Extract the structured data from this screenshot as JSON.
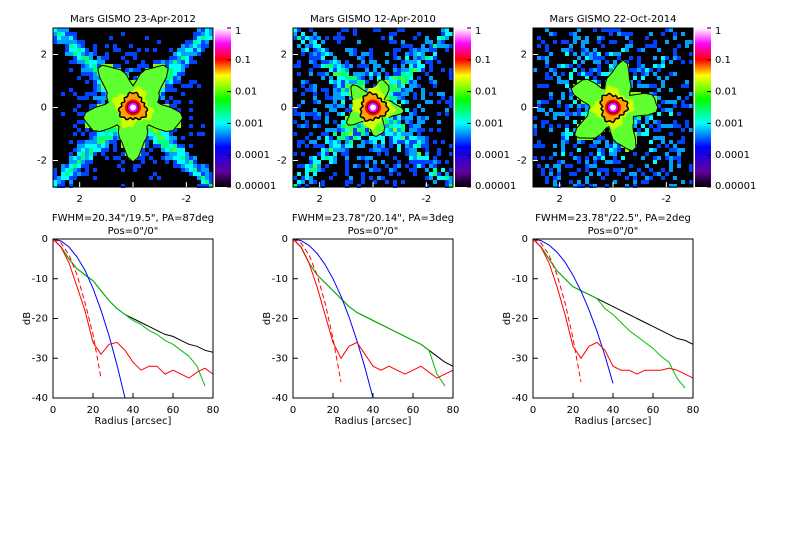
{
  "chart_data": [
    {
      "type": "image",
      "title": "Mars GISMO 23-Apr-2012",
      "xlim": [
        3,
        -3
      ],
      "xticks": [
        2,
        0,
        -2
      ],
      "ylim": [
        -3,
        3
      ],
      "yticks": [
        -2,
        0,
        2
      ],
      "colorbar": {
        "scale": "log",
        "lim": [
          1e-05,
          1
        ],
        "ticks": [
          1,
          0.1,
          0.01,
          0.001,
          0.0001,
          1e-05
        ]
      }
    },
    {
      "type": "image",
      "title": "Mars GISMO 12-Apr-2010",
      "xlim": [
        3,
        -3
      ],
      "xticks": [
        2,
        0,
        -2
      ],
      "ylim": [
        -3,
        3
      ],
      "yticks": [
        -2,
        0,
        2
      ],
      "colorbar": {
        "scale": "log",
        "lim": [
          1e-05,
          1
        ],
        "ticks": [
          1,
          0.1,
          0.01,
          0.001,
          0.0001,
          1e-05
        ]
      }
    },
    {
      "type": "image",
      "title": "Mars GISMO 22-Oct-2014",
      "xlim": [
        3,
        -3
      ],
      "xticks": [
        2,
        0,
        -2
      ],
      "ylim": [
        -3,
        3
      ],
      "yticks": [
        -2,
        0,
        2
      ],
      "colorbar": {
        "scale": "log",
        "lim": [
          1e-05,
          1
        ],
        "ticks": [
          1,
          0.1,
          0.01,
          0.001,
          0.0001,
          1e-05
        ]
      }
    },
    {
      "type": "line",
      "title": "FWHM=20.34\"/19.5\", PA=87deg",
      "subtitle": "Pos=0\"/0\"",
      "xlabel": "Radius [arcsec]",
      "ylabel": "dB",
      "x": [
        0,
        4,
        8,
        12,
        16,
        20,
        24,
        28,
        32,
        36,
        40,
        44,
        48,
        52,
        56,
        60,
        64,
        68,
        72,
        76,
        80
      ],
      "xlim": [
        0,
        80
      ],
      "xticks": [
        0,
        20,
        40,
        60,
        80
      ],
      "ylim": [
        -40,
        0
      ],
      "yticks": [
        0,
        -10,
        -20,
        -30,
        -40
      ],
      "series": [
        {
          "color": "#000000",
          "values": [
            0,
            -2,
            -5,
            -7.5,
            -9,
            -10.5,
            -13,
            -15.5,
            -17.5,
            -19,
            -20,
            -21,
            -22,
            -23,
            -24,
            -24.5,
            -25.5,
            -26.5,
            -27,
            -28,
            -28.5
          ]
        },
        {
          "color": "#00c000",
          "values": [
            0,
            -2,
            -5,
            -7.5,
            -9,
            -10.5,
            -13,
            -15.5,
            -17.5,
            -19,
            -20.5,
            -21.5,
            -23,
            -24,
            -25.5,
            -26.5,
            -28,
            -29.5,
            -32,
            -37,
            null
          ]
        },
        {
          "color": "#0000ff",
          "values": [
            0,
            -0.5,
            -2,
            -4.5,
            -7.9,
            -12.4,
            -17.9,
            -24.3,
            -31.7,
            -40,
            null,
            null,
            null,
            null,
            null,
            null,
            null,
            null,
            null,
            null,
            null
          ]
        },
        {
          "color": "#ff0000",
          "values": [
            0,
            -2,
            -6,
            -12,
            -18,
            -26,
            -29,
            -26.5,
            -26,
            -28,
            -31,
            -33,
            -32,
            -32,
            -34,
            -33,
            -34,
            -35,
            -33.5,
            -32.5,
            -34
          ]
        },
        {
          "color": "#ff0000",
          "dash": true,
          "values": [
            0,
            -1,
            -4,
            -9,
            -16,
            -24,
            -35,
            null,
            null,
            null,
            null,
            null,
            null,
            null,
            null,
            null,
            null,
            null,
            null,
            null,
            null
          ]
        }
      ]
    },
    {
      "type": "line",
      "title": "FWHM=23.78\"/20.14\", PA=3deg",
      "subtitle": "Pos=0\"/0\"",
      "xlabel": "Radius [arcsec]",
      "ylabel": "dB",
      "x": [
        0,
        4,
        8,
        12,
        16,
        20,
        24,
        28,
        32,
        36,
        40,
        44,
        48,
        52,
        56,
        60,
        64,
        68,
        72,
        76,
        80
      ],
      "xlim": [
        0,
        80
      ],
      "xticks": [
        0,
        20,
        40,
        60,
        80
      ],
      "ylim": [
        -40,
        0
      ],
      "yticks": [
        0,
        -10,
        -20,
        -30,
        -40
      ],
      "series": [
        {
          "color": "#000000",
          "values": [
            0,
            -2,
            -6,
            -9,
            -11,
            -13,
            -15,
            -17,
            -18.5,
            -19.5,
            -20.5,
            -21.5,
            -22.5,
            -23.5,
            -24.5,
            -25.5,
            -26.5,
            -28,
            -29.5,
            -31,
            -32
          ]
        },
        {
          "color": "#00c000",
          "values": [
            0,
            -2,
            -6,
            -9,
            -11,
            -13,
            -15,
            -17,
            -18.5,
            -19.5,
            -20.5,
            -21.5,
            -22.5,
            -23.5,
            -24.5,
            -25.5,
            -26.5,
            -28,
            -34,
            -37,
            null
          ]
        },
        {
          "color": "#0000ff",
          "values": [
            0,
            -0.4,
            -1.6,
            -3.6,
            -6.4,
            -10,
            -14.4,
            -19.6,
            -25.6,
            -32.4,
            -40,
            null,
            null,
            null,
            null,
            null,
            null,
            null,
            null,
            null,
            null
          ]
        },
        {
          "color": "#ff0000",
          "values": [
            0,
            -2,
            -6,
            -12,
            -19,
            -26,
            -30,
            -27,
            -26,
            -29,
            -32,
            -33,
            -32,
            -33,
            -34,
            -33,
            -32,
            -33.5,
            -35,
            -34,
            -33
          ]
        },
        {
          "color": "#ff0000",
          "dash": true,
          "values": [
            0,
            -1,
            -4,
            -9,
            -16,
            -25,
            -36,
            null,
            null,
            null,
            null,
            null,
            null,
            null,
            null,
            null,
            null,
            null,
            null,
            null,
            null
          ]
        }
      ]
    },
    {
      "type": "line",
      "title": "FWHM=23.78\"/22.5\", PA=2deg",
      "subtitle": "Pos=0\"/0\"",
      "xlabel": "Radius [arcsec]",
      "ylabel": "dB",
      "x": [
        0,
        4,
        8,
        12,
        16,
        20,
        24,
        28,
        32,
        36,
        40,
        44,
        48,
        52,
        56,
        60,
        64,
        68,
        72,
        76,
        80
      ],
      "xlim": [
        0,
        80
      ],
      "xticks": [
        0,
        20,
        40,
        60,
        80
      ],
      "ylim": [
        -40,
        0
      ],
      "yticks": [
        0,
        -10,
        -20,
        -30,
        -40
      ],
      "series": [
        {
          "color": "#000000",
          "values": [
            0,
            -2,
            -5,
            -8,
            -10,
            -12,
            -13,
            -14,
            -15,
            -16,
            -17,
            -18,
            -19,
            -20,
            -21,
            -22,
            -23,
            -24,
            -25,
            -25.5,
            -26.5
          ]
        },
        {
          "color": "#00c000",
          "values": [
            0,
            -2,
            -5,
            -8,
            -10,
            -12,
            -13,
            -14,
            -15,
            -17.5,
            -19,
            -21,
            -23,
            -24.5,
            -26,
            -27.5,
            -29.5,
            -31,
            -35,
            -37.5,
            null
          ]
        },
        {
          "color": "#0000ff",
          "values": [
            0,
            -0.4,
            -1.5,
            -3.3,
            -5.8,
            -9.1,
            -13.1,
            -17.8,
            -23.2,
            -29.4,
            -36.3,
            null,
            null,
            null,
            null,
            null,
            null,
            null,
            null,
            null,
            null
          ]
        },
        {
          "color": "#ff0000",
          "values": [
            0,
            -2,
            -6,
            -12,
            -19,
            -27,
            -30,
            -27,
            -26,
            -28,
            -32,
            -33,
            -33,
            -34,
            -33,
            -33,
            -33,
            -32.5,
            -33,
            -34,
            -35
          ]
        },
        {
          "color": "#ff0000",
          "dash": true,
          "values": [
            0,
            -1,
            -4,
            -9,
            -16,
            -25,
            -36,
            null,
            null,
            null,
            null,
            null,
            null,
            null,
            null,
            null,
            null,
            null,
            null,
            null,
            null
          ]
        }
      ]
    }
  ]
}
